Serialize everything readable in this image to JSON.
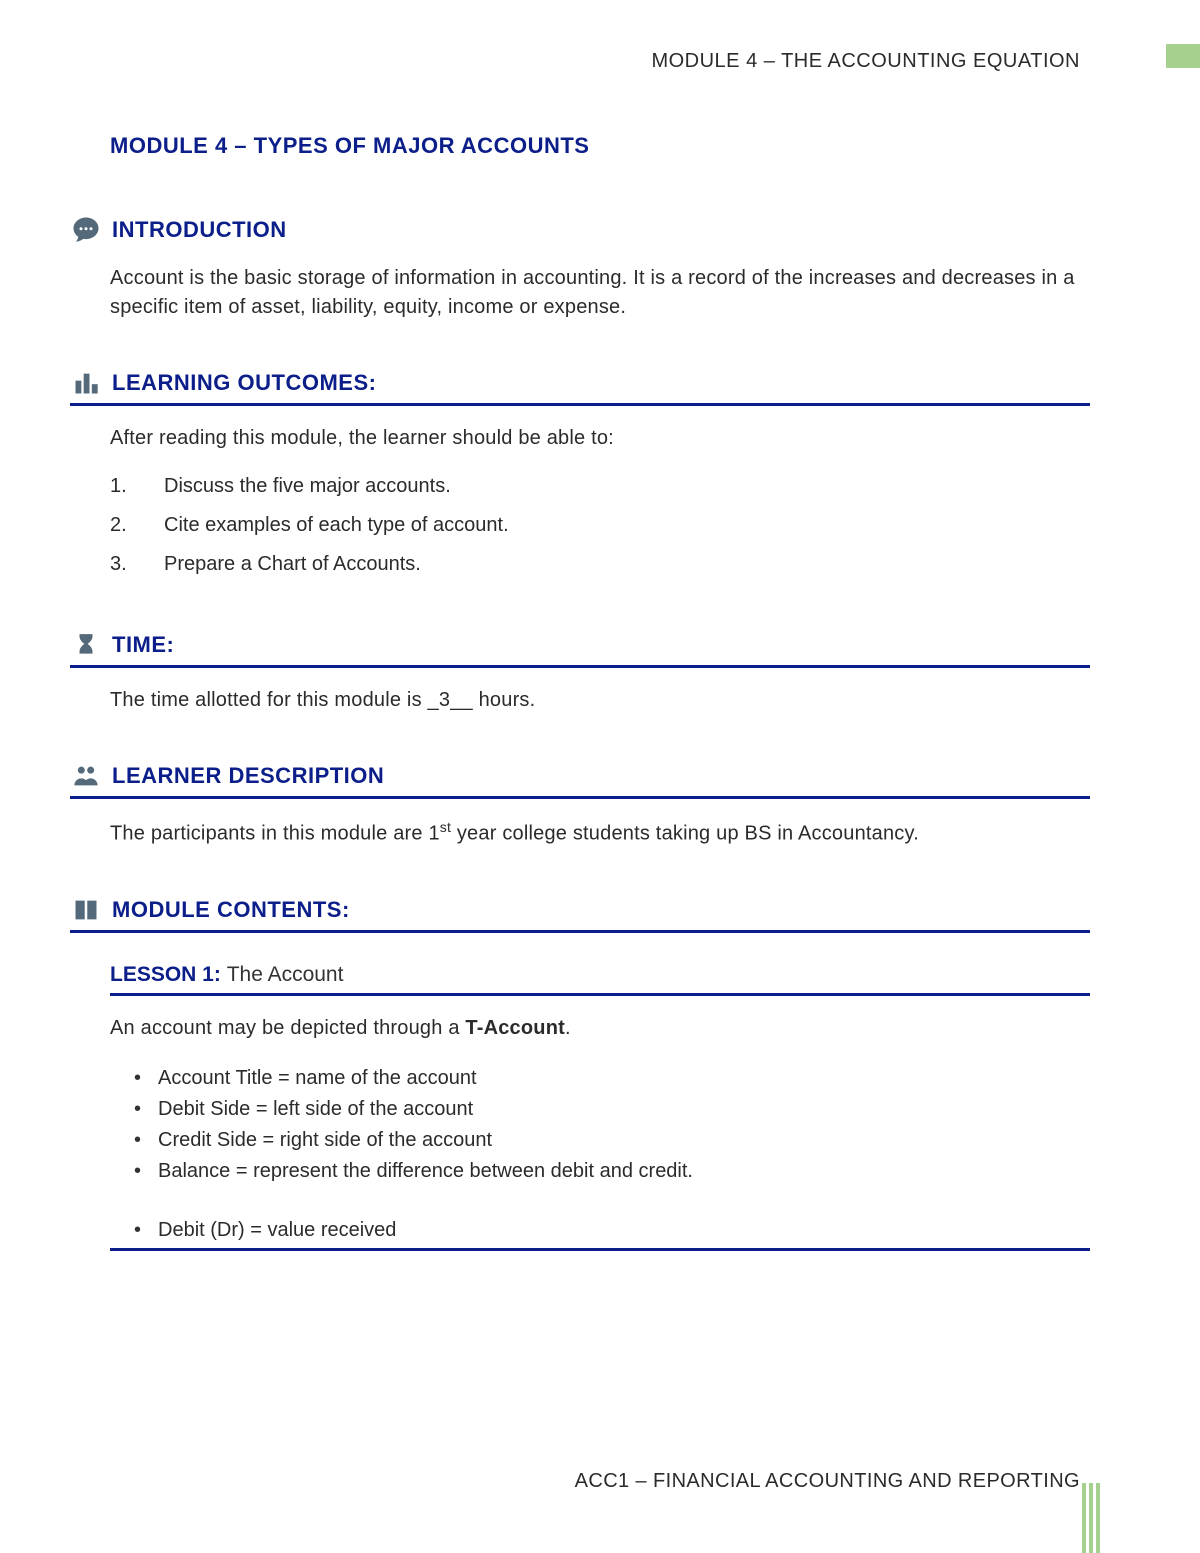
{
  "header": {
    "breadcrumb": "MODULE 4 – THE ACCOUNTING EQUATION"
  },
  "module_title": "MODULE 4 – TYPES OF MAJOR ACCOUNTS",
  "sections": {
    "introduction": {
      "title": "INTRODUCTION",
      "body": "Account is the basic storage of information in accounting. It is a record of the increases and decreases in a specific item of asset, liability, equity, income or expense."
    },
    "learning_outcomes": {
      "title": "LEARNING OUTCOMES:",
      "intro": "After reading this module, the learner should be able to:",
      "items": [
        "Discuss the five major accounts.",
        "Cite examples of each type of account.",
        "Prepare a Chart of Accounts."
      ]
    },
    "time": {
      "title": "TIME:",
      "body_prefix": "The time allotted for this module is ",
      "hours": "_3__",
      "body_suffix": " hours."
    },
    "learner_description": {
      "title": "LEARNER DESCRIPTION",
      "body_html": "The participants in this module are 1<sup>st</sup> year college students taking up BS in Accountancy."
    },
    "module_contents": {
      "title": "MODULE CONTENTS:",
      "lesson": {
        "label": "LESSON 1:",
        "name": "The Account",
        "intro_html": "An account may be depicted through a <b>T-Account</b>.",
        "bullets1": [
          "Account Title = name of the account",
          "Debit Side = left side of the account",
          "Credit Side = right side of the account",
          "Balance = represent the difference between debit and credit."
        ],
        "bullets2": [
          "Debit (Dr) = value received"
        ]
      }
    }
  },
  "footer": {
    "text": "ACC1 – FINANCIAL ACCOUNTING AND REPORTING"
  },
  "colors": {
    "heading_blue": "#0b1e8a",
    "icon_gray": "#546a7b",
    "accent_green": "#a6d08e",
    "body_text": "#2b2b2b",
    "background": "#ffffff"
  },
  "typography": {
    "title_fontsize_pt": 16,
    "body_fontsize_pt": 15,
    "font_family": "Arial"
  }
}
